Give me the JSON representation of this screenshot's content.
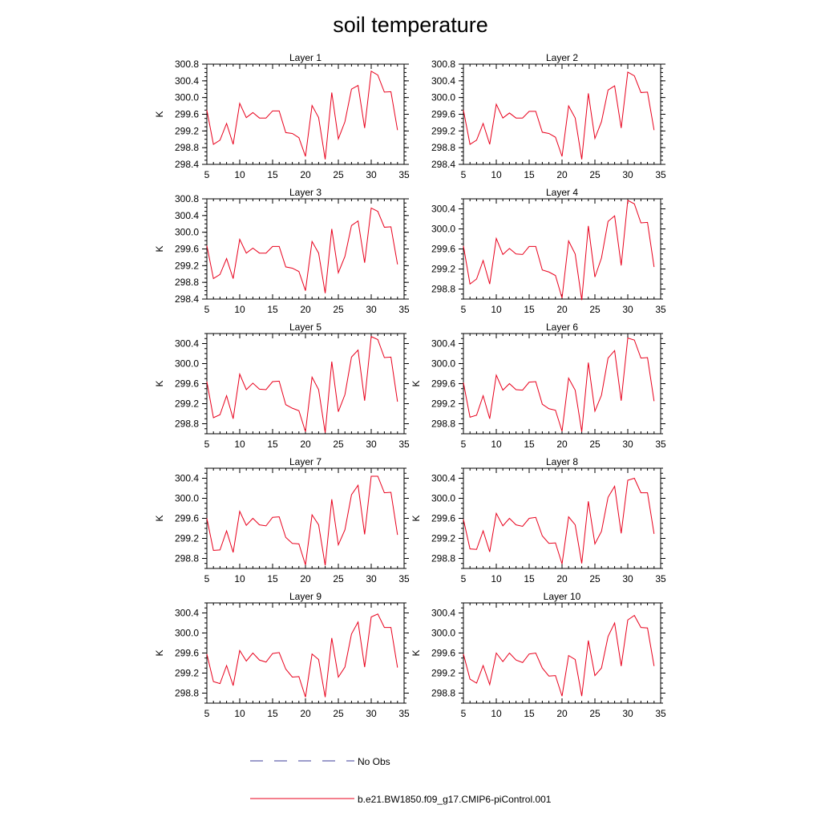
{
  "figure": {
    "title": "soil temperature",
    "legend": [
      {
        "label": "No Obs",
        "color": "#3b3b9a",
        "dash": "dashed"
      },
      {
        "label": "b.e21.BW1850.f09_g17.CMIP6-piControl.001",
        "color": "#e8001c",
        "dash": "solid"
      }
    ]
  },
  "chart_data": [
    {
      "type": "line",
      "title": "Layer 1",
      "ylabel": "K",
      "xlim": [
        5,
        35
      ],
      "ylim": [
        298.4,
        300.8
      ],
      "xticks": [
        "5",
        "10",
        "15",
        "20",
        "25",
        "30",
        "35"
      ],
      "yticks": [
        "298.4",
        "298.8",
        "299.2",
        "299.6",
        "300.0",
        "300.4",
        "300.8"
      ],
      "x": [
        5,
        6,
        7,
        8,
        9,
        10,
        11,
        12,
        13,
        14,
        15,
        16,
        17,
        18,
        19,
        20,
        21,
        22,
        23,
        24,
        25,
        26,
        27,
        28,
        29,
        30,
        31,
        32,
        33,
        34
      ],
      "series": [
        {
          "name": "b.e21.BW1850.f09_g17.CMIP6-piControl.001",
          "color": "#e8001c",
          "values": [
            299.7,
            298.88,
            298.98,
            299.38,
            298.88,
            299.86,
            299.52,
            299.64,
            299.51,
            299.51,
            299.68,
            299.68,
            299.16,
            299.14,
            299.04,
            298.59,
            299.81,
            299.52,
            298.52,
            300.12,
            299.01,
            299.42,
            300.2,
            300.29,
            299.27,
            300.63,
            300.54,
            300.13,
            300.14,
            299.22
          ]
        }
      ]
    },
    {
      "type": "line",
      "title": "Layer 2",
      "ylabel": "",
      "xlim": [
        5,
        35
      ],
      "ylim": [
        298.4,
        300.8
      ],
      "xticks": [
        "5",
        "10",
        "15",
        "20",
        "25",
        "30",
        "35"
      ],
      "yticks": [
        "298.4",
        "298.8",
        "299.2",
        "299.6",
        "300.0",
        "300.4",
        "300.8"
      ],
      "x": [
        5,
        6,
        7,
        8,
        9,
        10,
        11,
        12,
        13,
        14,
        15,
        16,
        17,
        18,
        19,
        20,
        21,
        22,
        23,
        24,
        25,
        26,
        27,
        28,
        29,
        30,
        31,
        32,
        33,
        34
      ],
      "series": [
        {
          "name": "b.e21.BW1850.f09_g17.CMIP6-piControl.001",
          "color": "#e8001c",
          "values": [
            299.7,
            298.88,
            298.98,
            299.38,
            298.88,
            299.84,
            299.51,
            299.63,
            299.51,
            299.51,
            299.67,
            299.67,
            299.17,
            299.14,
            299.05,
            298.59,
            299.8,
            299.51,
            298.52,
            300.1,
            299.02,
            299.42,
            300.18,
            300.28,
            299.27,
            300.61,
            300.52,
            300.12,
            300.13,
            299.22
          ]
        }
      ]
    },
    {
      "type": "line",
      "title": "Layer 3",
      "ylabel": "K",
      "xlim": [
        5,
        35
      ],
      "ylim": [
        298.4,
        300.8
      ],
      "xticks": [
        "5",
        "10",
        "15",
        "20",
        "25",
        "30",
        "35"
      ],
      "yticks": [
        "298.4",
        "298.8",
        "299.2",
        "299.6",
        "300.0",
        "300.4",
        "300.8"
      ],
      "x": [
        5,
        6,
        7,
        8,
        9,
        10,
        11,
        12,
        13,
        14,
        15,
        16,
        17,
        18,
        19,
        20,
        21,
        22,
        23,
        24,
        25,
        26,
        27,
        28,
        29,
        30,
        31,
        32,
        33,
        34
      ],
      "series": [
        {
          "name": "b.e21.BW1850.f09_g17.CMIP6-piControl.001",
          "color": "#e8001c",
          "values": [
            299.68,
            298.89,
            298.99,
            299.37,
            298.89,
            299.83,
            299.5,
            299.62,
            299.5,
            299.5,
            299.66,
            299.66,
            299.17,
            299.14,
            299.06,
            298.6,
            299.78,
            299.5,
            298.54,
            300.08,
            299.03,
            299.42,
            300.16,
            300.27,
            299.27,
            300.58,
            300.5,
            300.12,
            300.13,
            299.23
          ]
        }
      ]
    },
    {
      "type": "line",
      "title": "Layer 4",
      "ylabel": "",
      "xlim": [
        5,
        35
      ],
      "ylim": [
        298.6,
        300.6
      ],
      "xticks": [
        "5",
        "10",
        "15",
        "20",
        "25",
        "30",
        "35"
      ],
      "yticks": [
        "298.8",
        "299.2",
        "299.6",
        "300.0",
        "300.4"
      ],
      "x": [
        5,
        6,
        7,
        8,
        9,
        10,
        11,
        12,
        13,
        14,
        15,
        16,
        17,
        18,
        19,
        20,
        21,
        22,
        23,
        24,
        25,
        26,
        27,
        28,
        29,
        30,
        31,
        32,
        33,
        34
      ],
      "series": [
        {
          "name": "b.e21.BW1850.f09_g17.CMIP6-piControl.001",
          "color": "#e8001c",
          "values": [
            299.66,
            298.9,
            299.0,
            299.37,
            298.9,
            299.81,
            299.49,
            299.61,
            299.5,
            299.49,
            299.65,
            299.65,
            299.18,
            299.14,
            299.07,
            298.62,
            299.76,
            299.5,
            298.58,
            300.06,
            299.04,
            299.42,
            300.15,
            300.26,
            299.27,
            300.57,
            300.5,
            300.12,
            300.13,
            299.24
          ]
        }
      ]
    },
    {
      "type": "line",
      "title": "Layer 5",
      "ylabel": "K",
      "xlim": [
        5,
        35
      ],
      "ylim": [
        298.6,
        300.6
      ],
      "xticks": [
        "5",
        "10",
        "15",
        "20",
        "25",
        "30",
        "35"
      ],
      "yticks": [
        "298.8",
        "299.2",
        "299.6",
        "300.0",
        "300.4"
      ],
      "x": [
        5,
        6,
        7,
        8,
        9,
        10,
        11,
        12,
        13,
        14,
        15,
        16,
        17,
        18,
        19,
        20,
        21,
        22,
        23,
        24,
        25,
        26,
        27,
        28,
        29,
        30,
        31,
        32,
        33,
        34
      ],
      "series": [
        {
          "name": "b.e21.BW1850.f09_g17.CMIP6-piControl.001",
          "color": "#e8001c",
          "values": [
            299.64,
            298.92,
            298.98,
            299.36,
            298.9,
            299.79,
            299.48,
            299.61,
            299.49,
            299.48,
            299.64,
            299.65,
            299.18,
            299.11,
            299.06,
            298.64,
            299.73,
            299.48,
            298.62,
            300.04,
            299.04,
            299.38,
            300.13,
            300.27,
            299.26,
            300.54,
            300.48,
            300.12,
            300.13,
            299.24
          ]
        }
      ]
    },
    {
      "type": "line",
      "title": "Layer 6",
      "ylabel": "K",
      "xlim": [
        5,
        35
      ],
      "ylim": [
        298.6,
        300.6
      ],
      "xticks": [
        "5",
        "10",
        "15",
        "20",
        "25",
        "30",
        "35"
      ],
      "yticks": [
        "298.8",
        "299.2",
        "299.6",
        "300.0",
        "300.4"
      ],
      "x": [
        5,
        6,
        7,
        8,
        9,
        10,
        11,
        12,
        13,
        14,
        15,
        16,
        17,
        18,
        19,
        20,
        21,
        22,
        23,
        24,
        25,
        26,
        27,
        28,
        29,
        30,
        31,
        32,
        33,
        34
      ],
      "series": [
        {
          "name": "b.e21.BW1850.f09_g17.CMIP6-piControl.001",
          "color": "#e8001c",
          "values": [
            299.62,
            298.93,
            298.97,
            299.36,
            298.9,
            299.77,
            299.47,
            299.6,
            299.48,
            299.47,
            299.63,
            299.64,
            299.19,
            299.1,
            299.07,
            298.65,
            299.71,
            299.47,
            298.64,
            300.02,
            299.05,
            299.37,
            300.11,
            300.26,
            299.26,
            300.51,
            300.47,
            300.11,
            300.12,
            299.25
          ]
        }
      ]
    },
    {
      "type": "line",
      "title": "Layer 7",
      "ylabel": "K",
      "xlim": [
        5,
        35
      ],
      "ylim": [
        298.6,
        300.6
      ],
      "xticks": [
        "5",
        "10",
        "15",
        "20",
        "25",
        "30",
        "35"
      ],
      "yticks": [
        "298.8",
        "299.2",
        "299.6",
        "300.0",
        "300.4"
      ],
      "x": [
        5,
        6,
        7,
        8,
        9,
        10,
        11,
        12,
        13,
        14,
        15,
        16,
        17,
        18,
        19,
        20,
        21,
        22,
        23,
        24,
        25,
        26,
        27,
        28,
        29,
        30,
        31,
        32,
        33,
        34
      ],
      "series": [
        {
          "name": "b.e21.BW1850.f09_g17.CMIP6-piControl.001",
          "color": "#e8001c",
          "values": [
            299.6,
            298.96,
            298.97,
            299.35,
            298.92,
            299.74,
            299.46,
            299.6,
            299.47,
            299.45,
            299.62,
            299.63,
            299.22,
            299.1,
            299.09,
            298.67,
            299.67,
            299.47,
            298.66,
            299.98,
            299.07,
            299.37,
            300.07,
            300.26,
            299.28,
            300.44,
            300.44,
            300.11,
            300.12,
            299.27
          ]
        }
      ]
    },
    {
      "type": "line",
      "title": "Layer 8",
      "ylabel": "K",
      "xlim": [
        5,
        35
      ],
      "ylim": [
        298.6,
        300.6
      ],
      "xticks": [
        "5",
        "10",
        "15",
        "20",
        "25",
        "30",
        "35"
      ],
      "yticks": [
        "298.8",
        "299.2",
        "299.6",
        "300.0",
        "300.4"
      ],
      "x": [
        5,
        6,
        7,
        8,
        9,
        10,
        11,
        12,
        13,
        14,
        15,
        16,
        17,
        18,
        19,
        20,
        21,
        22,
        23,
        24,
        25,
        26,
        27,
        28,
        29,
        30,
        31,
        32,
        33,
        34
      ],
      "series": [
        {
          "name": "b.e21.BW1850.f09_g17.CMIP6-piControl.001",
          "color": "#e8001c",
          "values": [
            299.58,
            298.99,
            298.98,
            299.35,
            298.93,
            299.7,
            299.45,
            299.6,
            299.47,
            299.44,
            299.6,
            299.62,
            299.25,
            299.1,
            299.11,
            298.69,
            299.63,
            299.47,
            298.7,
            299.94,
            299.09,
            299.34,
            300.02,
            300.24,
            299.3,
            300.36,
            300.4,
            300.11,
            300.11,
            299.29
          ]
        }
      ]
    },
    {
      "type": "line",
      "title": "Layer 9",
      "ylabel": "K",
      "xlim": [
        5,
        35
      ],
      "ylim": [
        298.6,
        300.6
      ],
      "xticks": [
        "5",
        "10",
        "15",
        "20",
        "25",
        "30",
        "35"
      ],
      "yticks": [
        "298.8",
        "299.2",
        "299.6",
        "300.0",
        "300.4"
      ],
      "x": [
        5,
        6,
        7,
        8,
        9,
        10,
        11,
        12,
        13,
        14,
        15,
        16,
        17,
        18,
        19,
        20,
        21,
        22,
        23,
        24,
        25,
        26,
        27,
        28,
        29,
        30,
        31,
        32,
        33,
        34
      ],
      "series": [
        {
          "name": "b.e21.BW1850.f09_g17.CMIP6-piControl.001",
          "color": "#e8001c",
          "values": [
            299.58,
            299.03,
            298.99,
            299.35,
            298.95,
            299.65,
            299.44,
            299.6,
            299.46,
            299.42,
            299.59,
            299.61,
            299.28,
            299.12,
            299.13,
            298.72,
            299.58,
            299.47,
            298.72,
            299.9,
            299.12,
            299.32,
            299.98,
            300.22,
            299.32,
            300.32,
            300.38,
            300.11,
            300.11,
            299.31
          ]
        }
      ]
    },
    {
      "type": "line",
      "title": "Layer 10",
      "ylabel": "K",
      "xlim": [
        5,
        35
      ],
      "ylim": [
        298.6,
        300.6
      ],
      "xticks": [
        "5",
        "10",
        "15",
        "20",
        "25",
        "30",
        "35"
      ],
      "yticks": [
        "298.8",
        "299.2",
        "299.6",
        "300.0",
        "300.4"
      ],
      "x": [
        5,
        6,
        7,
        8,
        9,
        10,
        11,
        12,
        13,
        14,
        15,
        16,
        17,
        18,
        19,
        20,
        21,
        22,
        23,
        24,
        25,
        26,
        27,
        28,
        29,
        30,
        31,
        32,
        33,
        34
      ],
      "series": [
        {
          "name": "b.e21.BW1850.f09_g17.CMIP6-piControl.001",
          "color": "#e8001c",
          "values": [
            299.58,
            299.08,
            299.0,
            299.35,
            298.97,
            299.6,
            299.43,
            299.6,
            299.46,
            299.41,
            299.58,
            299.6,
            299.3,
            299.14,
            299.15,
            298.74,
            299.55,
            299.47,
            298.74,
            299.85,
            299.15,
            299.3,
            299.93,
            300.2,
            299.34,
            300.26,
            300.35,
            300.11,
            300.1,
            299.34
          ]
        }
      ]
    }
  ]
}
